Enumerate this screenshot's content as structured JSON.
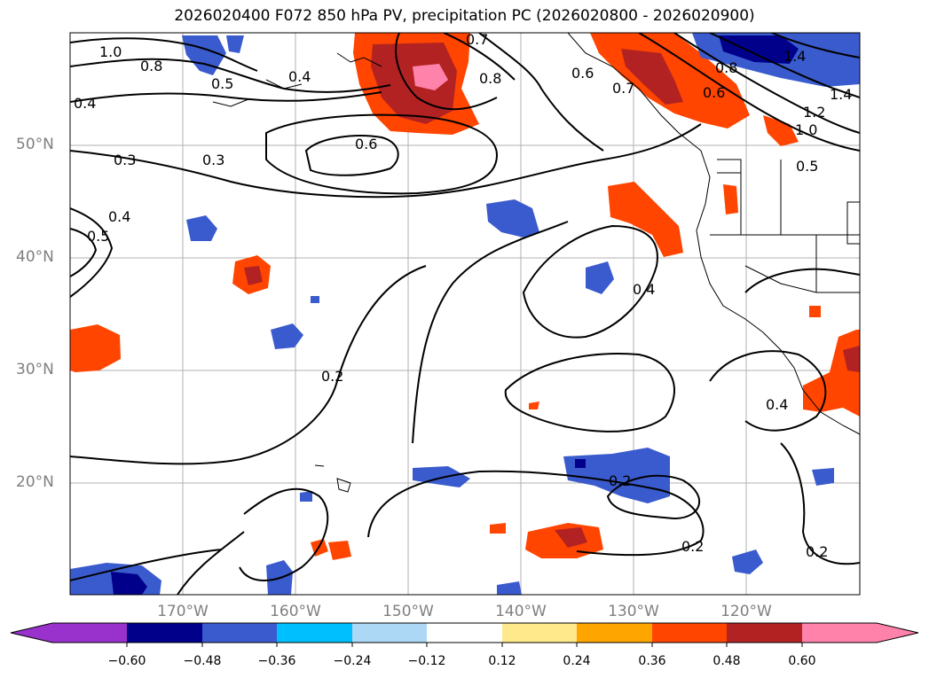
{
  "title": "2026020400 F072 850 hPa PV, precipitation PC (2026020800 - 2026020900)",
  "lat_labels": [
    "50°N",
    "40°N",
    "30°N",
    "20°N"
  ],
  "lon_labels": [
    "170°W",
    "160°W",
    "150°W",
    "140°W",
    "130°W",
    "120°W"
  ],
  "contour_labels": [
    "1.0",
    "0.8",
    "0.4",
    "0.7",
    "0.8",
    "0.6",
    "0.5",
    "0.4",
    "0.3",
    "0.3",
    "0.6",
    "0.7",
    "0.8",
    "0.6",
    "1.4",
    "1.2",
    "1.0",
    "1.4",
    "0.5",
    "0.4",
    "0.5",
    "0.4",
    "0.2",
    "0.4",
    "0.2",
    "0.2",
    "0.2"
  ],
  "colorbar": {
    "ticks": [
      "−0.60",
      "−0.48",
      "−0.36",
      "−0.24",
      "−0.12",
      "0.12",
      "0.24",
      "0.36",
      "0.48",
      "0.60"
    ],
    "colors": [
      "#9932cc",
      "#00008b",
      "#3a5bcd",
      "#00bfff",
      "#add8f5",
      "#ffffff",
      "#ffe98a",
      "#ffa500",
      "#ff4500",
      "#b22222",
      "#ff82ab"
    ]
  },
  "colors": {
    "land_outline": "#000000",
    "grid": "#b0b0b0",
    "label_gray": "#7f7f7f"
  }
}
